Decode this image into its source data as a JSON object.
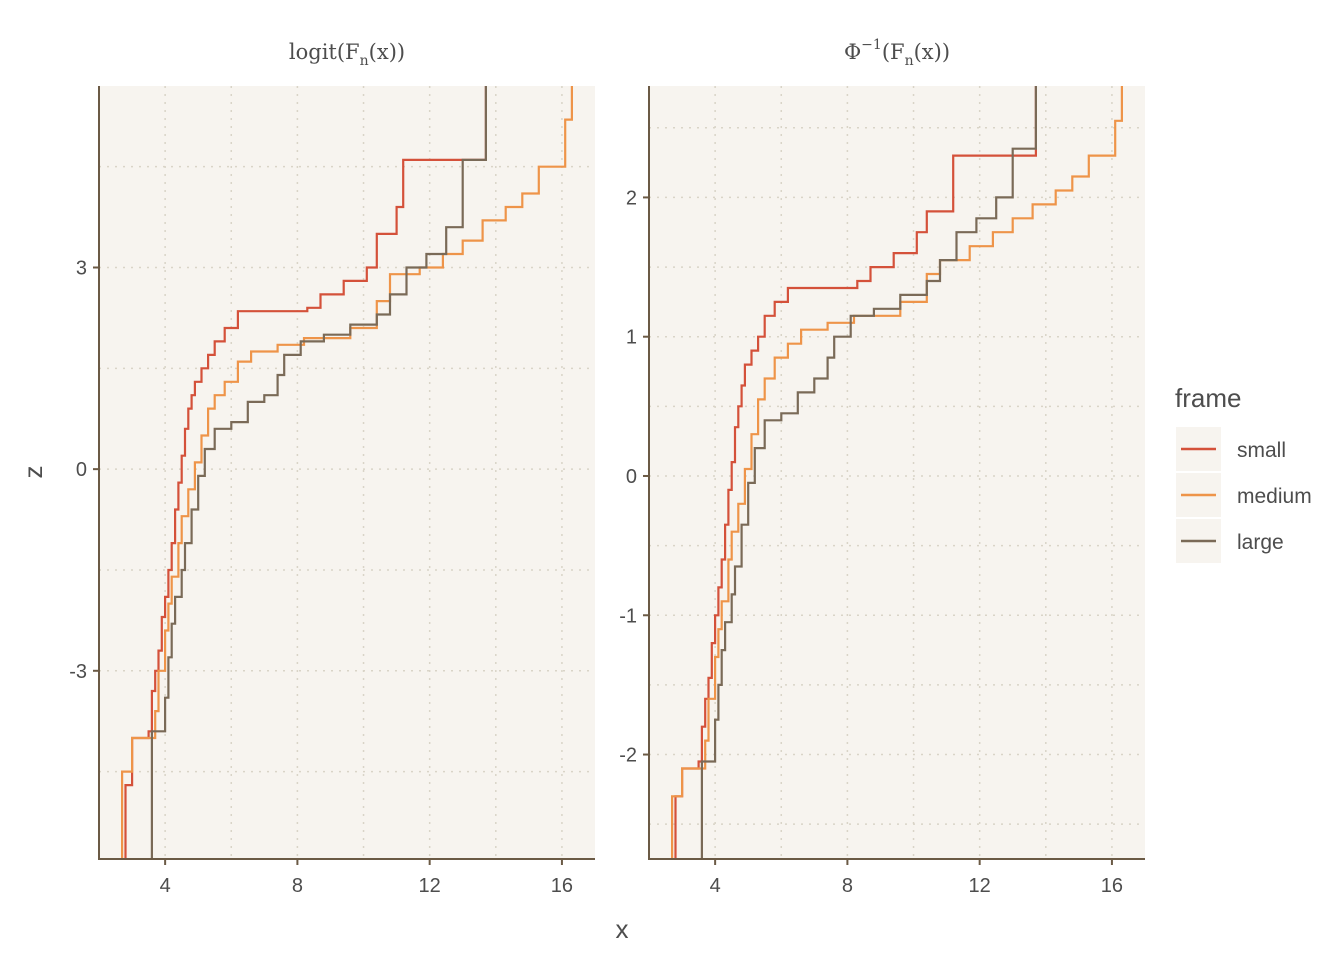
{
  "colors": {
    "panel_bg": "#f7f4ef",
    "grid": "#d9d4c7",
    "axis": "#6b5a45",
    "small": "#d4513a",
    "medium": "#ee9449",
    "large": "#7a6a57"
  },
  "chart_data": {
    "type": "line",
    "step": true,
    "xlabel": "x",
    "ylabel": "z",
    "grid": "dotted major and minor",
    "legend": {
      "title": "frame",
      "placement": "right",
      "entries": [
        "small",
        "medium",
        "large"
      ]
    },
    "xlim": [
      2,
      17
    ],
    "x_ticks": [
      4,
      8,
      12,
      16
    ],
    "panels": [
      {
        "strip": "logit(Fn(x))",
        "strip_main": "logit(F",
        "strip_sub": "n",
        "strip_tail": "(x))",
        "ylim": [
          -5.8,
          5.7
        ],
        "y_ticks": [
          -3,
          0,
          3
        ],
        "y_tick_labels": [
          "-3",
          "0",
          "3"
        ],
        "series": [
          {
            "name": "small",
            "points": [
              [
                2.8,
                -6.5
              ],
              [
                2.8,
                -4.7
              ],
              [
                3.0,
                -4.0
              ],
              [
                3.5,
                -3.9
              ],
              [
                3.6,
                -3.3
              ],
              [
                3.7,
                -3.0
              ],
              [
                3.8,
                -2.7
              ],
              [
                3.9,
                -2.2
              ],
              [
                4.0,
                -1.9
              ],
              [
                4.1,
                -1.5
              ],
              [
                4.2,
                -1.1
              ],
              [
                4.3,
                -0.6
              ],
              [
                4.4,
                -0.2
              ],
              [
                4.5,
                0.2
              ],
              [
                4.6,
                0.6
              ],
              [
                4.7,
                0.9
              ],
              [
                4.8,
                1.1
              ],
              [
                4.9,
                1.3
              ],
              [
                5.1,
                1.5
              ],
              [
                5.3,
                1.7
              ],
              [
                5.5,
                1.9
              ],
              [
                5.8,
                2.1
              ],
              [
                6.2,
                2.35
              ],
              [
                8.3,
                2.4
              ],
              [
                8.7,
                2.6
              ],
              [
                9.4,
                2.8
              ],
              [
                10.1,
                3.0
              ],
              [
                10.4,
                3.5
              ],
              [
                11.0,
                3.9
              ],
              [
                11.2,
                4.6
              ],
              [
                13.7,
                6.0
              ],
              [
                16.0,
                6.0
              ]
            ]
          },
          {
            "name": "medium",
            "points": [
              [
                2.7,
                -6.5
              ],
              [
                2.7,
                -4.5
              ],
              [
                3.0,
                -4.0
              ],
              [
                3.7,
                -3.6
              ],
              [
                3.8,
                -3.0
              ],
              [
                4.0,
                -2.4
              ],
              [
                4.1,
                -2.0
              ],
              [
                4.2,
                -1.6
              ],
              [
                4.4,
                -1.1
              ],
              [
                4.5,
                -0.7
              ],
              [
                4.7,
                -0.3
              ],
              [
                4.9,
                0.1
              ],
              [
                5.1,
                0.5
              ],
              [
                5.3,
                0.9
              ],
              [
                5.5,
                1.1
              ],
              [
                5.8,
                1.3
              ],
              [
                6.2,
                1.6
              ],
              [
                6.6,
                1.75
              ],
              [
                7.4,
                1.85
              ],
              [
                8.2,
                1.95
              ],
              [
                9.6,
                2.1
              ],
              [
                10.4,
                2.5
              ],
              [
                10.8,
                2.9
              ],
              [
                11.7,
                3.0
              ],
              [
                12.4,
                3.2
              ],
              [
                13.0,
                3.4
              ],
              [
                13.6,
                3.7
              ],
              [
                14.3,
                3.9
              ],
              [
                14.8,
                4.1
              ],
              [
                15.3,
                4.5
              ],
              [
                16.1,
                5.2
              ],
              [
                16.3,
                6.0
              ]
            ]
          },
          {
            "name": "large",
            "points": [
              [
                3.6,
                -6.5
              ],
              [
                3.6,
                -3.9
              ],
              [
                4.0,
                -3.4
              ],
              [
                4.1,
                -2.8
              ],
              [
                4.2,
                -2.3
              ],
              [
                4.3,
                -1.9
              ],
              [
                4.5,
                -1.5
              ],
              [
                4.6,
                -1.1
              ],
              [
                4.8,
                -0.6
              ],
              [
                5.0,
                -0.1
              ],
              [
                5.2,
                0.3
              ],
              [
                5.5,
                0.6
              ],
              [
                6.0,
                0.7
              ],
              [
                6.5,
                1.0
              ],
              [
                7.0,
                1.1
              ],
              [
                7.4,
                1.4
              ],
              [
                7.6,
                1.7
              ],
              [
                8.1,
                1.9
              ],
              [
                8.8,
                2.0
              ],
              [
                9.6,
                2.15
              ],
              [
                10.4,
                2.3
              ],
              [
                10.8,
                2.6
              ],
              [
                11.3,
                3.0
              ],
              [
                11.9,
                3.2
              ],
              [
                12.5,
                3.6
              ],
              [
                13.0,
                4.6
              ],
              [
                13.7,
                6.0
              ],
              [
                16.0,
                6.0
              ]
            ]
          }
        ]
      },
      {
        "strip": "Φ⁻¹(Fn(x))",
        "strip_main": "Φ",
        "strip_sup": "−1",
        "strip_mid": "(F",
        "strip_sub": "n",
        "strip_tail": "(x))",
        "ylim": [
          -2.75,
          2.8
        ],
        "y_ticks": [
          -2,
          -1,
          0,
          1,
          2
        ],
        "y_tick_labels": [
          "-2",
          "-1",
          "0",
          "1",
          "2"
        ],
        "series": [
          {
            "name": "small",
            "points": [
              [
                2.8,
                -3.0
              ],
              [
                2.8,
                -2.3
              ],
              [
                3.0,
                -2.1
              ],
              [
                3.5,
                -2.05
              ],
              [
                3.6,
                -1.8
              ],
              [
                3.7,
                -1.6
              ],
              [
                3.8,
                -1.45
              ],
              [
                3.9,
                -1.2
              ],
              [
                4.0,
                -1.0
              ],
              [
                4.1,
                -0.8
              ],
              [
                4.2,
                -0.6
              ],
              [
                4.3,
                -0.35
              ],
              [
                4.4,
                -0.1
              ],
              [
                4.5,
                0.1
              ],
              [
                4.6,
                0.35
              ],
              [
                4.7,
                0.5
              ],
              [
                4.8,
                0.65
              ],
              [
                4.9,
                0.8
              ],
              [
                5.1,
                0.9
              ],
              [
                5.3,
                1.0
              ],
              [
                5.5,
                1.15
              ],
              [
                5.8,
                1.25
              ],
              [
                6.2,
                1.35
              ],
              [
                8.3,
                1.4
              ],
              [
                8.7,
                1.5
              ],
              [
                9.4,
                1.6
              ],
              [
                10.1,
                1.75
              ],
              [
                10.4,
                1.9
              ],
              [
                11.2,
                2.3
              ],
              [
                13.7,
                2.9
              ],
              [
                16.0,
                2.9
              ]
            ]
          },
          {
            "name": "medium",
            "points": [
              [
                2.7,
                -3.0
              ],
              [
                2.7,
                -2.3
              ],
              [
                3.0,
                -2.1
              ],
              [
                3.7,
                -1.9
              ],
              [
                3.8,
                -1.6
              ],
              [
                4.0,
                -1.3
              ],
              [
                4.1,
                -1.1
              ],
              [
                4.2,
                -0.9
              ],
              [
                4.4,
                -0.6
              ],
              [
                4.5,
                -0.4
              ],
              [
                4.7,
                -0.2
              ],
              [
                4.9,
                0.05
              ],
              [
                5.1,
                0.3
              ],
              [
                5.3,
                0.55
              ],
              [
                5.5,
                0.7
              ],
              [
                5.8,
                0.85
              ],
              [
                6.2,
                0.95
              ],
              [
                6.6,
                1.05
              ],
              [
                7.4,
                1.1
              ],
              [
                8.2,
                1.15
              ],
              [
                9.6,
                1.25
              ],
              [
                10.4,
                1.45
              ],
              [
                10.8,
                1.55
              ],
              [
                11.7,
                1.65
              ],
              [
                12.4,
                1.75
              ],
              [
                13.0,
                1.85
              ],
              [
                13.6,
                1.95
              ],
              [
                14.3,
                2.05
              ],
              [
                14.8,
                2.15
              ],
              [
                15.3,
                2.3
              ],
              [
                16.1,
                2.55
              ],
              [
                16.3,
                2.9
              ]
            ]
          },
          {
            "name": "large",
            "points": [
              [
                3.6,
                -3.0
              ],
              [
                3.6,
                -2.05
              ],
              [
                4.0,
                -1.75
              ],
              [
                4.1,
                -1.5
              ],
              [
                4.2,
                -1.25
              ],
              [
                4.3,
                -1.05
              ],
              [
                4.5,
                -0.85
              ],
              [
                4.6,
                -0.65
              ],
              [
                4.8,
                -0.35
              ],
              [
                5.0,
                -0.05
              ],
              [
                5.2,
                0.2
              ],
              [
                5.5,
                0.4
              ],
              [
                6.0,
                0.45
              ],
              [
                6.5,
                0.6
              ],
              [
                7.0,
                0.7
              ],
              [
                7.4,
                0.85
              ],
              [
                7.6,
                1.0
              ],
              [
                8.1,
                1.15
              ],
              [
                8.8,
                1.2
              ],
              [
                9.6,
                1.3
              ],
              [
                10.4,
                1.4
              ],
              [
                10.8,
                1.55
              ],
              [
                11.3,
                1.75
              ],
              [
                11.9,
                1.85
              ],
              [
                12.5,
                2.0
              ],
              [
                13.0,
                2.35
              ],
              [
                13.7,
                2.9
              ],
              [
                16.0,
                2.9
              ]
            ]
          }
        ]
      }
    ]
  }
}
